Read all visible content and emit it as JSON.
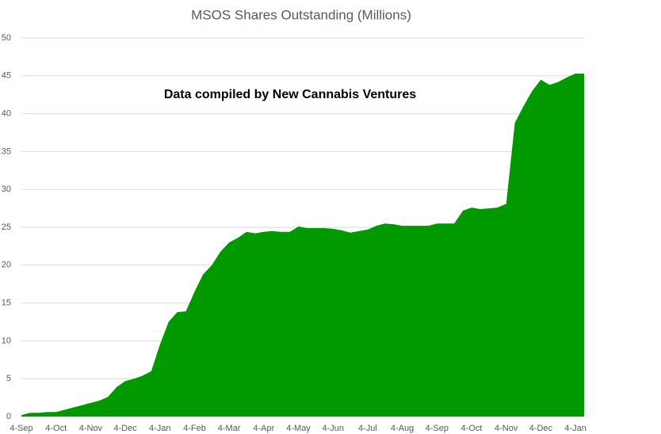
{
  "chart_data": {
    "type": "area",
    "title": "MSOS Shares Outstanding (Millions)",
    "annotation": "Data compiled by New Cannabis Ventures",
    "color": "#009900",
    "categories": [
      "4-Sep",
      null,
      null,
      null,
      "4-Oct",
      null,
      null,
      null,
      "4-Nov",
      null,
      null,
      null,
      "4-Dec",
      null,
      null,
      null,
      "4-Jan",
      null,
      null,
      null,
      "4-Feb",
      null,
      null,
      null,
      "4-Mar",
      null,
      null,
      null,
      "4-Apr",
      null,
      null,
      null,
      "4-May",
      null,
      null,
      null,
      "4-Jun",
      null,
      null,
      null,
      "4-Jul",
      null,
      null,
      null,
      "4-Aug",
      null,
      null,
      null,
      "4-Sep",
      null,
      null,
      null,
      "4-Oct",
      null,
      null,
      null,
      "4-Nov",
      null,
      null,
      null,
      "4-Dec",
      null,
      null,
      null,
      "4-Jan",
      null
    ],
    "values": [
      0.2,
      0.5,
      0.5,
      0.6,
      0.6,
      0.9,
      1.2,
      1.5,
      1.8,
      2.1,
      2.6,
      3.9,
      4.7,
      5.0,
      5.4,
      6.0,
      9.5,
      12.5,
      13.8,
      13.9,
      16.5,
      18.8,
      20.0,
      21.8,
      23.0,
      23.6,
      24.4,
      24.2,
      24.4,
      24.5,
      24.4,
      24.4,
      25.1,
      24.9,
      24.9,
      24.9,
      24.8,
      24.6,
      24.3,
      24.5,
      24.7,
      25.2,
      25.5,
      25.4,
      25.2,
      25.2,
      25.2,
      25.2,
      25.5,
      25.5,
      25.5,
      27.2,
      27.6,
      27.4,
      27.5,
      27.6,
      28.1,
      38.8,
      41.0,
      43.0,
      44.5,
      43.8,
      44.2,
      44.8,
      45.3,
      45.3
    ],
    "ylim": [
      0,
      50
    ],
    "yticks": [
      0,
      5,
      10,
      15,
      20,
      25,
      30,
      35,
      40,
      45,
      50
    ],
    "grid": true
  }
}
